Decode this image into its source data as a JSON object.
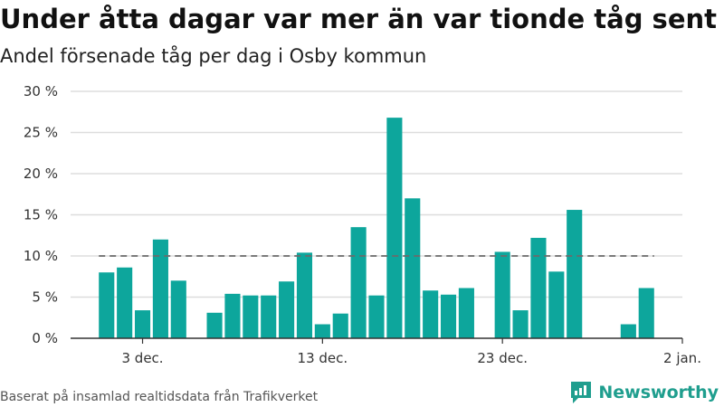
{
  "header": {
    "title": "Under åtta dagar var mer än var tionde tåg sent",
    "subtitle": "Andel försenade tåg per dag i Osby kommun"
  },
  "footer": {
    "source": "Baserat på insamlad realtidsdata från Trafikverket",
    "brand": "Newsworthy"
  },
  "colors": {
    "bar": "#0da69c",
    "reference_line": "#6b6b6b",
    "grid": "#dddddd",
    "axis": "#333333",
    "brand": "#1f9e8e"
  },
  "icons": {
    "brand_logo": "chart-speech-bubble-icon"
  },
  "chart_data": {
    "type": "bar",
    "title": "Under åtta dagar var mer än var tionde tåg sent",
    "subtitle": "Andel försenade tåg per dag i Osby kommun",
    "xlabel": "",
    "ylabel": "",
    "x": [
      "2023-12-01",
      "2023-12-02",
      "2023-12-03",
      "2023-12-04",
      "2023-12-05",
      "2023-12-06",
      "2023-12-07",
      "2023-12-08",
      "2023-12-09",
      "2023-12-10",
      "2023-12-11",
      "2023-12-12",
      "2023-12-13",
      "2023-12-14",
      "2023-12-15",
      "2023-12-16",
      "2023-12-17",
      "2023-12-18",
      "2023-12-19",
      "2023-12-20",
      "2023-12-21",
      "2023-12-22",
      "2023-12-23",
      "2023-12-24",
      "2023-12-25",
      "2023-12-26",
      "2023-12-27",
      "2023-12-28",
      "2023-12-29",
      "2023-12-30",
      "2023-12-31"
    ],
    "values": [
      8.0,
      8.6,
      3.4,
      12.0,
      7.0,
      null,
      3.1,
      5.4,
      5.2,
      5.2,
      6.9,
      10.4,
      1.7,
      3.0,
      13.5,
      5.2,
      26.8,
      17.0,
      5.8,
      5.3,
      6.1,
      null,
      10.5,
      3.4,
      12.2,
      8.1,
      15.6,
      null,
      null,
      1.7,
      6.1
    ],
    "reference_line": {
      "value": 10,
      "style": "dashed"
    },
    "ylim": [
      0,
      30
    ],
    "yticks": [
      0,
      5,
      10,
      15,
      20,
      25,
      30
    ],
    "ytick_labels": [
      "0 %",
      "5 %",
      "10 %",
      "15 %",
      "20 %",
      "25 %",
      "30 %"
    ],
    "xticks": [
      "2023-12-03",
      "2023-12-13",
      "2023-12-23",
      "2024-01-02"
    ],
    "xtick_labels": [
      "3 dec.",
      "13 dec.",
      "23 dec.",
      "2 jan."
    ],
    "xlim": [
      "2023-11-29",
      "2024-01-02"
    ],
    "grid": true,
    "legend": "none"
  }
}
